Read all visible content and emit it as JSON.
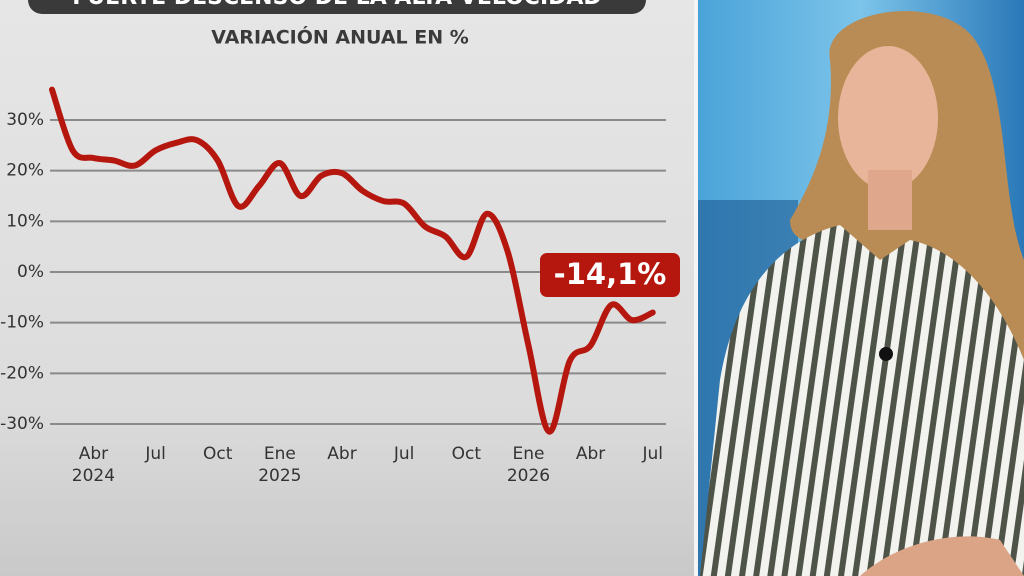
{
  "chart_data": {
    "type": "line",
    "title": "FUERTE DESCENSO DE LA ALTA VELOCIDAD",
    "subtitle": "VARIACIÓN ANUAL EN %",
    "categories": [
      null,
      null,
      "Abr 2024",
      null,
      null,
      "Jul",
      null,
      null,
      "Oct",
      null,
      null,
      "Ene 2025",
      null,
      null,
      "Abr",
      null,
      null,
      "Jul",
      null,
      null,
      "Oct",
      null,
      null,
      "Ene 2026",
      null,
      null,
      "Abr",
      null,
      null,
      "Jul"
    ],
    "values": [
      36,
      24,
      22.5,
      22,
      21,
      24,
      25.5,
      26,
      22,
      13,
      17,
      21.5,
      15,
      19,
      19.5,
      16,
      14,
      13.5,
      9,
      7,
      3,
      11.5,
      4,
      -14.5,
      -31.5,
      -17.5,
      -14.5,
      -6.5,
      -9.5,
      -8
    ],
    "color": "#b5170f",
    "ylim": [
      -30,
      30
    ],
    "yticks": [
      {
        "value": 30,
        "label": "30%"
      },
      {
        "value": 20,
        "label": "20%"
      },
      {
        "value": 10,
        "label": "10%"
      },
      {
        "value": 0,
        "label": "0%"
      },
      {
        "value": -10,
        "label": "-10%"
      },
      {
        "value": -20,
        "label": "-20%"
      },
      {
        "value": -30,
        "label": "-30%"
      }
    ],
    "grid": true,
    "annotation": "-14,1%"
  }
}
